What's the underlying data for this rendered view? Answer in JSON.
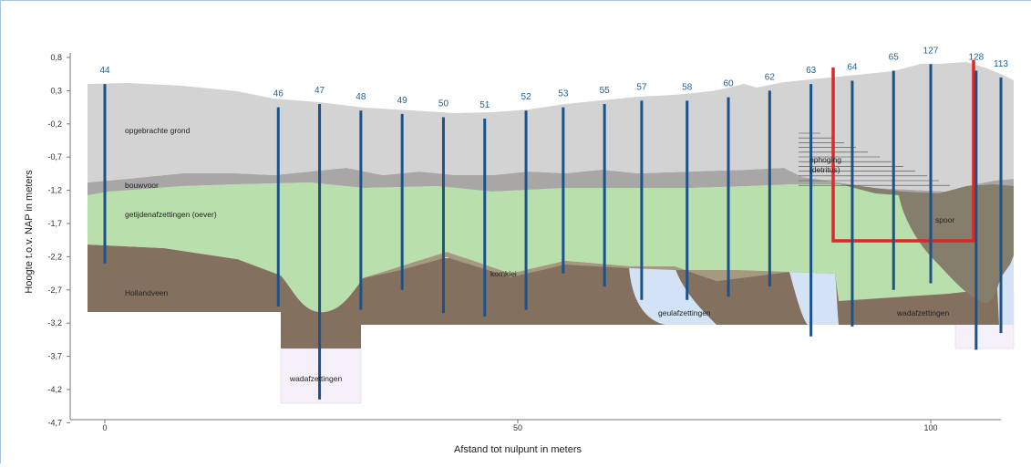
{
  "chart_data": {
    "type": "diagram",
    "ylabel": "Hoogte t.o.v. NAP in meters",
    "xlabel": "Afstand tot nulpunt in meters",
    "y_ticks": [
      "0,8",
      "0,3",
      "-0,2",
      "-0,7",
      "-1,2",
      "-1,7",
      "-2,2",
      "-2,7",
      "-3,2",
      "-3,7",
      "-4,2",
      "-4,7"
    ],
    "x_ticks": [
      {
        "value": 0,
        "label": "0"
      },
      {
        "value": 50,
        "label": "50"
      },
      {
        "value": 100,
        "label": "100"
      }
    ],
    "boreholes": [
      {
        "id": "44",
        "x": 0,
        "top": 0.4,
        "bottom": -2.3
      },
      {
        "id": "46",
        "x": 21,
        "top": 0.05,
        "bottom": -2.95
      },
      {
        "id": "47",
        "x": 26,
        "top": 0.1,
        "bottom": -4.35
      },
      {
        "id": "48",
        "x": 31,
        "top": 0.0,
        "bottom": -3.0
      },
      {
        "id": "49",
        "x": 36,
        "top": -0.05,
        "bottom": -2.7
      },
      {
        "id": "50",
        "x": 41,
        "top": -0.1,
        "bottom": -3.05
      },
      {
        "id": "51",
        "x": 46,
        "top": -0.12,
        "bottom": -3.1
      },
      {
        "id": "52",
        "x": 51,
        "top": 0.0,
        "bottom": -3.0
      },
      {
        "id": "53",
        "x": 55.5,
        "top": 0.05,
        "bottom": -2.45
      },
      {
        "id": "55",
        "x": 60.5,
        "top": 0.1,
        "bottom": -2.65
      },
      {
        "id": "57",
        "x": 65,
        "top": 0.15,
        "bottom": -2.85
      },
      {
        "id": "58",
        "x": 70.5,
        "top": 0.15,
        "bottom": -2.85
      },
      {
        "id": "60",
        "x": 75.5,
        "top": 0.2,
        "bottom": -2.8
      },
      {
        "id": "62",
        "x": 80.5,
        "top": 0.3,
        "bottom": -2.65
      },
      {
        "id": "63",
        "x": 85.5,
        "top": 0.4,
        "bottom": -3.4
      },
      {
        "id": "64",
        "x": 90.5,
        "top": 0.45,
        "bottom": -3.25
      },
      {
        "id": "65",
        "x": 95.5,
        "top": 0.6,
        "bottom": -2.7
      },
      {
        "id": "127",
        "x": 100,
        "top": 0.7,
        "bottom": -2.6
      },
      {
        "id": "128",
        "x": 105.5,
        "top": 0.6,
        "bottom": -3.6
      },
      {
        "id": "113",
        "x": 108.5,
        "top": 0.5,
        "bottom": -3.35
      }
    ],
    "unit_labels": [
      {
        "key": "opgebracht",
        "text": "opgebrachte grond"
      },
      {
        "key": "bouwvoor",
        "text": "bouwvoor"
      },
      {
        "key": "getij",
        "text": "getijdenafzettingen (oever)"
      },
      {
        "key": "hollandveen",
        "text": "Hollandveen"
      },
      {
        "key": "komklei",
        "text": "komklei"
      },
      {
        "key": "geul",
        "text": "geulafzettingen"
      },
      {
        "key": "wad1",
        "text": "wadafzettingen"
      },
      {
        "key": "wad2",
        "text": "wadafzettingen"
      },
      {
        "key": "ophoging1",
        "text": "ophoging"
      },
      {
        "key": "ophoging2",
        "text": "(detritus)"
      },
      {
        "key": "spoor",
        "text": "spoor"
      }
    ],
    "colors": {
      "opgebracht": "#d3d3d3",
      "bouwvoor": "#a9a6a6",
      "getij": "#b9dfad",
      "veen": "#84705f",
      "geul": "#d3e3f5",
      "wad": "#f5f0fa",
      "spoor": "#857e6c",
      "borehole": "#1a5289",
      "feature": "#d92a2a"
    }
  }
}
